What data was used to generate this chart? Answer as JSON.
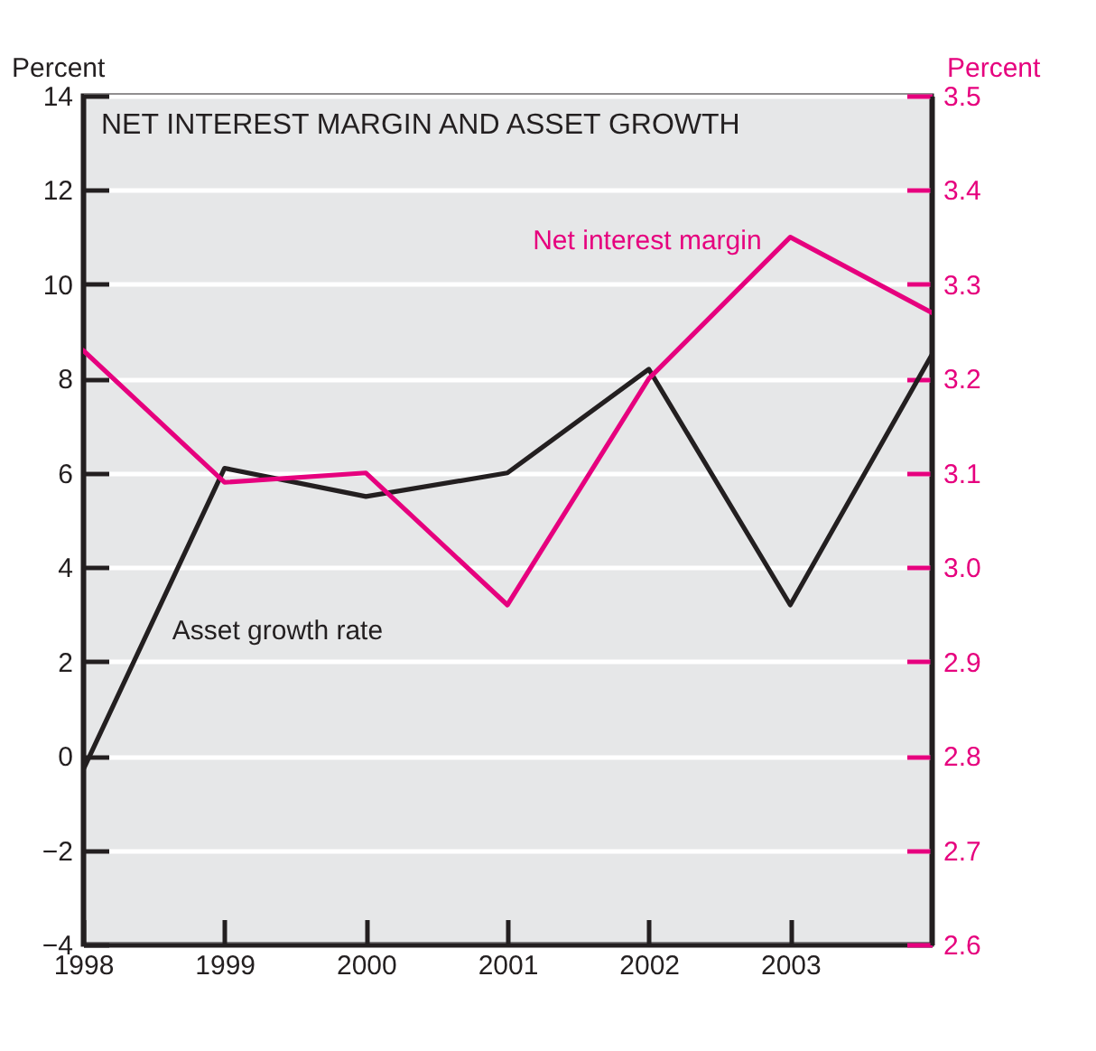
{
  "chart_data": {
    "type": "line",
    "title": "NET INTEREST MARGIN AND ASSET GROWTH",
    "ylabel": "Percent",
    "y2label": "Percent",
    "x": [
      1998,
      1999,
      2000,
      2001,
      2002,
      2003,
      2004
    ],
    "xlim": [
      1998,
      2004
    ],
    "xticks": [
      1998,
      1999,
      2000,
      2001,
      2002,
      2003
    ],
    "ylim": [
      -4,
      14
    ],
    "yticks": [
      {
        "value": -4,
        "label": "−4"
      },
      {
        "value": -2,
        "label": "−2"
      },
      0,
      2,
      4,
      6,
      8,
      10,
      12,
      14
    ],
    "y2lim": [
      2.6,
      3.5
    ],
    "y2ticks": [
      2.6,
      2.7,
      2.8,
      2.9,
      {
        "value": 3,
        "label": "3.0"
      },
      3.1,
      3.2,
      3.3,
      3.4,
      3.5
    ],
    "grid": "y",
    "legend": false,
    "line_style": "solid",
    "series": [
      {
        "name": "Asset growth rate",
        "color": "#231f20",
        "values": [
          -0.3,
          6.1,
          5.5,
          6.0,
          8.2,
          3.2,
          8.5
        ]
      },
      {
        "name": "Net interest margin",
        "color": "#e6007e",
        "axis": "y2",
        "values": [
          3.23,
          3.09,
          3.1,
          2.96,
          3.2,
          3.35,
          3.27
        ]
      }
    ]
  }
}
